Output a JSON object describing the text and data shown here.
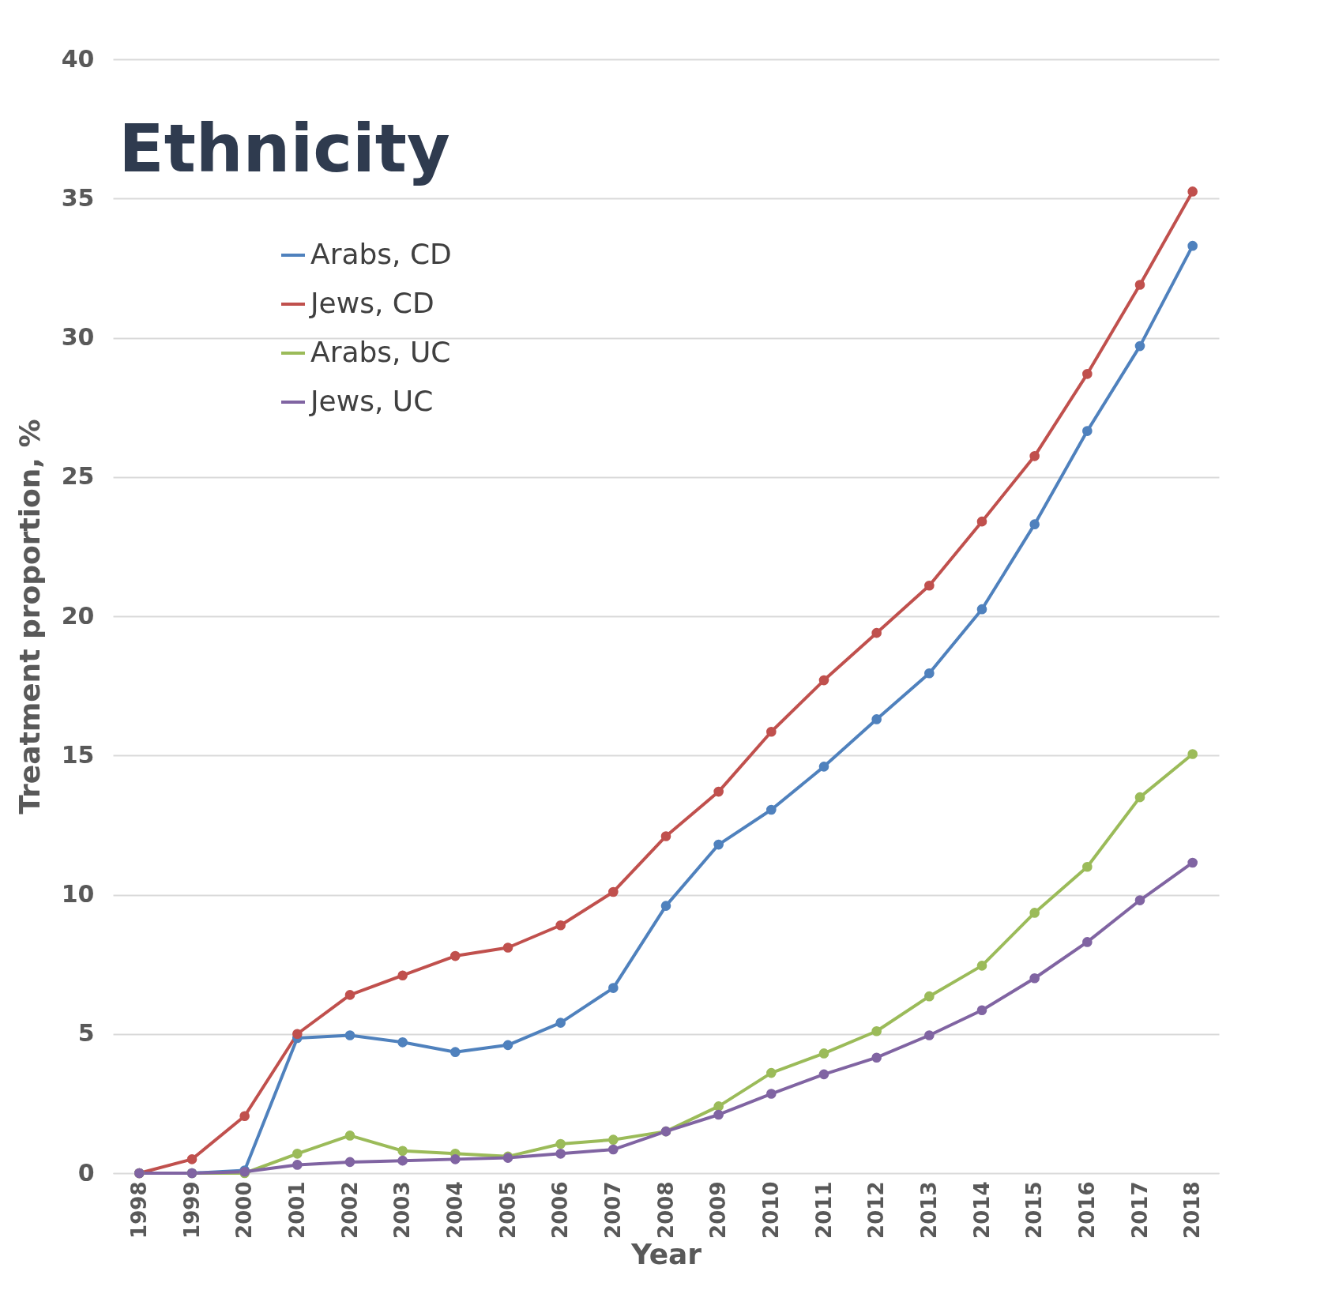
{
  "chart_data": {
    "type": "line",
    "title": "Ethnicity",
    "xlabel": "Year",
    "ylabel": "Treatment proportion, %",
    "categories": [
      "1998",
      "1999",
      "2000",
      "2001",
      "2002",
      "2003",
      "2004",
      "2005",
      "2006",
      "2007",
      "2008",
      "2009",
      "2010",
      "2011",
      "2012",
      "2013",
      "2014",
      "2015",
      "2016",
      "2017",
      "2018"
    ],
    "series": [
      {
        "name": "Arabs, CD",
        "color": "#4f81bd",
        "values": [
          0,
          0,
          0.1,
          4.85,
          4.95,
          4.7,
          4.35,
          4.6,
          5.4,
          6.65,
          9.6,
          11.8,
          13.05,
          14.6,
          16.3,
          17.95,
          20.25,
          23.3,
          26.65,
          29.7,
          33.3
        ]
      },
      {
        "name": "Jews, CD",
        "color": "#c0504d",
        "values": [
          0,
          0.5,
          2.05,
          5.0,
          6.4,
          7.1,
          7.8,
          8.1,
          8.9,
          10.1,
          12.1,
          13.7,
          15.85,
          17.7,
          19.4,
          21.1,
          23.4,
          25.75,
          28.7,
          31.9,
          35.25
        ]
      },
      {
        "name": "Arabs, UC",
        "color": "#9bbb59",
        "values": [
          0,
          0,
          0,
          0.7,
          1.35,
          0.8,
          0.7,
          0.6,
          1.05,
          1.2,
          1.5,
          2.4,
          3.6,
          4.3,
          5.1,
          6.35,
          7.45,
          9.35,
          11.0,
          13.5,
          15.05
        ]
      },
      {
        "name": "Jews, UC",
        "color": "#8064a2",
        "values": [
          0,
          0,
          0.05,
          0.3,
          0.4,
          0.45,
          0.5,
          0.55,
          0.7,
          0.85,
          1.5,
          2.1,
          2.85,
          3.55,
          4.15,
          4.95,
          5.85,
          7.0,
          8.3,
          9.8,
          11.15
        ]
      }
    ],
    "ylim": [
      0,
      40
    ],
    "yticks": [
      0,
      5,
      10,
      15,
      20,
      25,
      30,
      35,
      40
    ],
    "grid": "y",
    "legend": "top left",
    "marker": "circle",
    "line_style": "solid"
  }
}
